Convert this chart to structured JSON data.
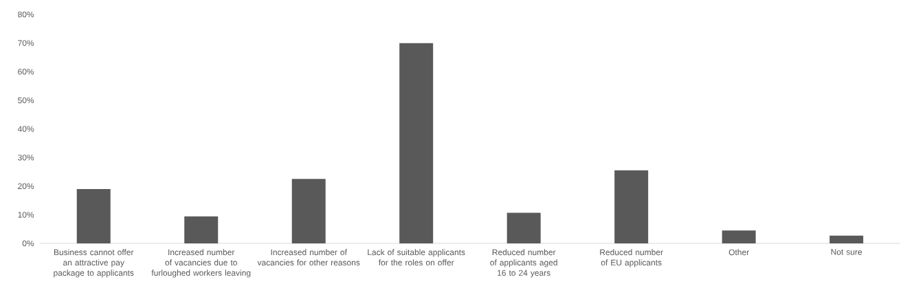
{
  "chart_data": {
    "type": "bar",
    "categories": [
      "Business cannot offer an attractive pay package to applicants",
      "Increased number of vacancies due to furloughed workers leaving",
      "Increased number of vacancies for other reasons",
      "Lack of suitable applicants for the roles on offer",
      "Reduced number of applicants aged 16 to 24 years",
      "Reduced number of EU applicants",
      "Other",
      "Not sure"
    ],
    "values": [
      19,
      9.4,
      22.5,
      70,
      10.7,
      25.5,
      4.5,
      2.7
    ],
    "color": "#595959",
    "ylim": [
      0,
      80
    ],
    "yticks": [
      {
        "value": 0,
        "label": "0%"
      },
      {
        "value": 10,
        "label": "10%"
      },
      {
        "value": 20,
        "label": "20%"
      },
      {
        "value": 30,
        "label": "30%"
      },
      {
        "value": 40,
        "label": "40%"
      },
      {
        "value": 50,
        "label": "50%"
      },
      {
        "value": 60,
        "label": "60%"
      },
      {
        "value": 70,
        "label": "70%"
      },
      {
        "value": 80,
        "label": "80%"
      }
    ]
  }
}
